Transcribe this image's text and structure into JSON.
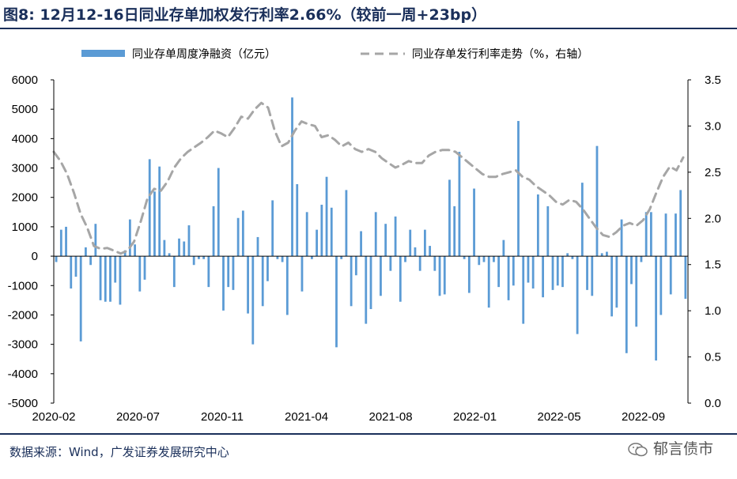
{
  "header": {
    "title": "图8:   12月12-16日同业存单加权发行利率2.66%（较前一周+23bp）"
  },
  "footer": {
    "source": "数据来源：Wind，广发证券发展研究中心",
    "watermark": "郁言债市"
  },
  "colors": {
    "bar": "#5b9bd5",
    "line": "#a6a6a6",
    "title": "#1a2f5a"
  },
  "icons": {
    "watermark": "wechat-icon"
  },
  "chart_data": {
    "type": "bar+line",
    "legend_position": "top",
    "grid": false,
    "x_tick_labels": [
      "2020-02",
      "2020-07",
      "2020-11",
      "2021-04",
      "2021-08",
      "2022-01",
      "2022-05",
      "2022-09"
    ],
    "series": [
      {
        "name": "同业存单周度净融资（亿元）",
        "type": "bar",
        "axis": "left",
        "values": [
          -200,
          900,
          1000,
          -1100,
          -700,
          -2900,
          300,
          -300,
          1100,
          -1500,
          -1550,
          -1550,
          -900,
          -1650,
          200,
          1250,
          400,
          -1200,
          -800,
          3300,
          2200,
          3050,
          550,
          100,
          -1050,
          600,
          500,
          1050,
          -300,
          -100,
          -100,
          -1050,
          1700,
          3000,
          -1850,
          -1050,
          -1150,
          1300,
          1550,
          -1950,
          -3000,
          650,
          -1700,
          -850,
          1900,
          -100,
          -200,
          -2000,
          5400,
          2450,
          -1200,
          1500,
          -100,
          900,
          1750,
          2700,
          1650,
          -3100,
          -100,
          2250,
          -1700,
          -650,
          850,
          -2300,
          -1800,
          1500,
          -1350,
          1100,
          -500,
          1350,
          -1550,
          -200,
          900,
          300,
          -500,
          900,
          350,
          -500,
          -1350,
          -1300,
          2600,
          1700,
          3550,
          -100,
          -1250,
          2300,
          -300,
          -200,
          -1750,
          -200,
          -1050,
          550,
          -1500,
          -1000,
          4600,
          -2300,
          -900,
          -1100,
          2100,
          -1400,
          1700,
          -1150,
          -1000,
          -1050,
          100,
          -100,
          -2650,
          2500,
          -1150,
          -1350,
          3750,
          100,
          150,
          -2050,
          -1750,
          1250,
          -3300,
          -950,
          -2400,
          -200,
          1500,
          1500,
          -3550,
          -2000,
          1450,
          -1300,
          1450,
          2250,
          -1450
        ],
        "xlim": [
          0,
          131
        ]
      },
      {
        "name": "同业存单发行利率走势（%，右轴）",
        "type": "line-dashed",
        "axis": "right",
        "values": [
          2.72,
          2.62,
          2.48,
          2.28,
          2.05,
          1.9,
          1.7,
          1.67,
          1.68,
          1.65,
          1.62,
          1.65,
          1.75,
          1.97,
          2.22,
          2.32,
          2.3,
          2.4,
          2.55,
          2.65,
          2.72,
          2.77,
          2.82,
          2.88,
          2.95,
          2.92,
          2.88,
          2.98,
          3.1,
          3.08,
          3.18,
          3.25,
          3.2,
          2.95,
          2.78,
          2.82,
          2.95,
          3.05,
          3.02,
          3.0,
          2.88,
          2.9,
          2.85,
          2.78,
          2.82,
          2.75,
          2.72,
          2.75,
          2.72,
          2.65,
          2.6,
          2.55,
          2.58,
          2.62,
          2.6,
          2.6,
          2.68,
          2.72,
          2.74,
          2.74,
          2.72,
          2.66,
          2.6,
          2.54,
          2.48,
          2.45,
          2.45,
          2.48,
          2.5,
          2.52,
          2.45,
          2.42,
          2.35,
          2.3,
          2.25,
          2.18,
          2.15,
          2.2,
          2.18,
          2.1,
          2.0,
          1.9,
          1.82,
          1.8,
          1.85,
          1.92,
          1.95,
          1.92,
          1.98,
          2.1,
          2.28,
          2.45,
          2.56,
          2.52,
          2.66
        ]
      }
    ],
    "y_left": {
      "min": -5000,
      "max": 6000,
      "step": 1000
    },
    "y_right": {
      "min": 0.0,
      "max": 3.5,
      "step": 0.5
    },
    "y_left_tick_labels": [
      "6000",
      "5000",
      "4000",
      "3000",
      "2000",
      "1000",
      "0",
      "-1000",
      "-2000",
      "-3000",
      "-4000",
      "-5000"
    ],
    "y_right_tick_labels": [
      "3.5",
      "3.0",
      "2.5",
      "2.0",
      "1.5",
      "1.0",
      "0.5",
      "0.0"
    ]
  }
}
